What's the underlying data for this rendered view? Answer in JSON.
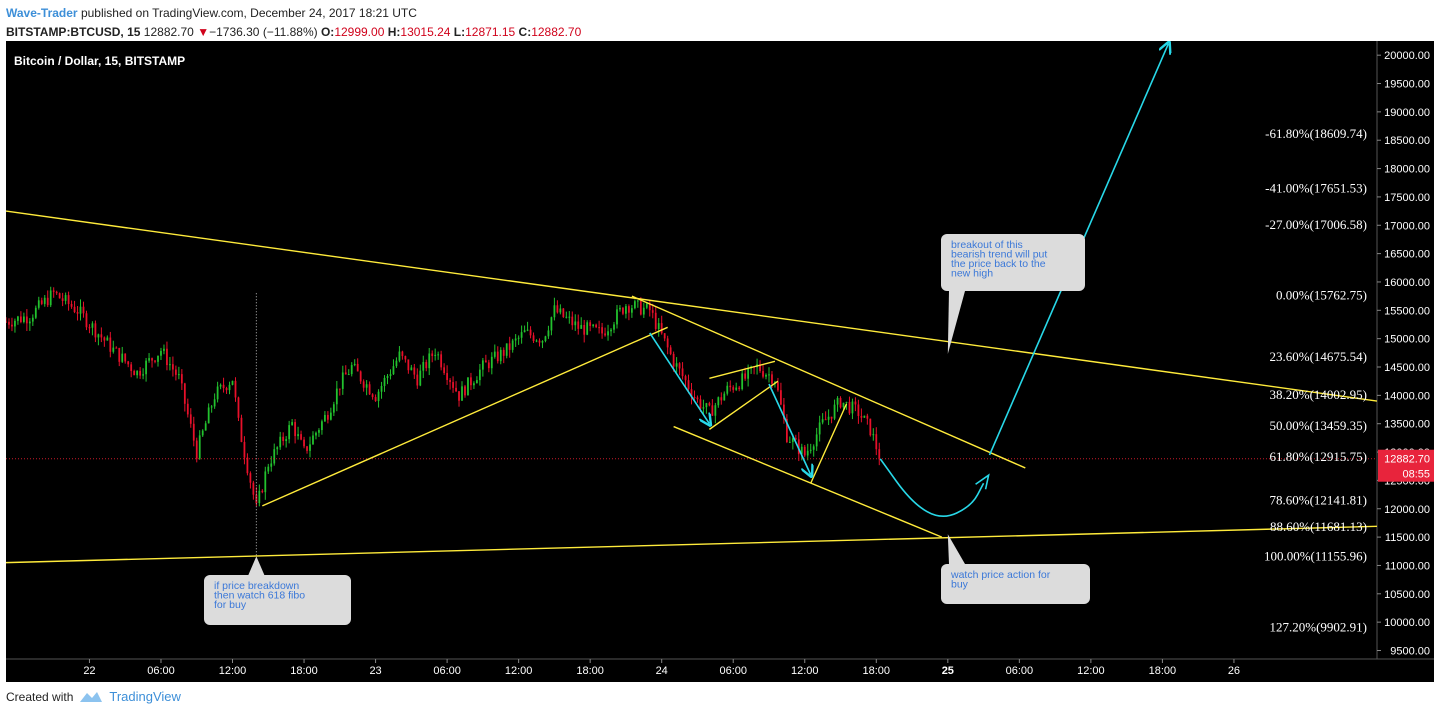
{
  "header": {
    "author": "Wave-Trader",
    "published": "published on TradingView.com, December 24, 2017 18:21 UTC",
    "symbol": "BITSTAMP:BTCUSD, 15",
    "last": "12882.70",
    "change": "−1736.30 (−11.88%)",
    "open_label": "O:",
    "open": "12999.00",
    "high_label": "H:",
    "high": "13015.24",
    "low_label": "L:",
    "low": "12871.15",
    "close_label": "C:",
    "close": "12882.70"
  },
  "footer": {
    "created_with": "Created with",
    "brand": "TradingView"
  },
  "chart_data": {
    "type": "candlestick",
    "title": "Bitcoin / Dollar, 15, BITSTAMP",
    "ylim": [
      9350,
      20250
    ],
    "y_ticks": [
      9500,
      10000,
      10500,
      11000,
      11500,
      12000,
      12500,
      13000,
      13500,
      14000,
      14500,
      15000,
      15500,
      16000,
      16500,
      17000,
      17500,
      18000,
      18500,
      19000,
      19500,
      20000
    ],
    "y_tick_labels": [
      "9500.00",
      "10000.00",
      "10500.00",
      "11000.00",
      "11500.00",
      "12000.00",
      "12500.00",
      "13000.00",
      "13500.00",
      "14000.00",
      "14500.00",
      "15000.00",
      "15500.00",
      "16000.00",
      "16500.00",
      "17000.00",
      "17500.00",
      "18000.00",
      "18500.00",
      "19000.00",
      "19500.00",
      "20000.00"
    ],
    "x_start": "2017-12-21T17:00",
    "x_end": "2017-12-26T12:00",
    "x_ticks": [
      {
        "t": "2017-12-22T00:00",
        "label": "22",
        "bold": false
      },
      {
        "t": "2017-12-22T06:00",
        "label": "06:00",
        "bold": false
      },
      {
        "t": "2017-12-22T12:00",
        "label": "12:00",
        "bold": false
      },
      {
        "t": "2017-12-22T18:00",
        "label": "18:00",
        "bold": false
      },
      {
        "t": "2017-12-23T00:00",
        "label": "23",
        "bold": false
      },
      {
        "t": "2017-12-23T06:00",
        "label": "06:00",
        "bold": false
      },
      {
        "t": "2017-12-23T12:00",
        "label": "12:00",
        "bold": false
      },
      {
        "t": "2017-12-23T18:00",
        "label": "18:00",
        "bold": false
      },
      {
        "t": "2017-12-24T00:00",
        "label": "24",
        "bold": false
      },
      {
        "t": "2017-12-24T06:00",
        "label": "06:00",
        "bold": false
      },
      {
        "t": "2017-12-24T12:00",
        "label": "12:00",
        "bold": false
      },
      {
        "t": "2017-12-24T18:00",
        "label": "18:00",
        "bold": false
      },
      {
        "t": "2017-12-25T00:00",
        "label": "25",
        "bold": true
      },
      {
        "t": "2017-12-25T06:00",
        "label": "06:00",
        "bold": false
      },
      {
        "t": "2017-12-25T12:00",
        "label": "12:00",
        "bold": false
      },
      {
        "t": "2017-12-25T18:00",
        "label": "18:00",
        "bold": false
      },
      {
        "t": "2017-12-26T00:00",
        "label": "26",
        "bold": false
      }
    ],
    "price_path": [
      [
        "2017-12-21T17:00",
        15300
      ],
      [
        "2017-12-21T19:00",
        15400
      ],
      [
        "2017-12-21T21:00",
        15800
      ],
      [
        "2017-12-21T23:00",
        15500
      ],
      [
        "2017-12-22T02:00",
        14800
      ],
      [
        "2017-12-22T04:00",
        14400
      ],
      [
        "2017-12-22T06:00",
        14800
      ],
      [
        "2017-12-22T07:30",
        14300
      ],
      [
        "2017-12-22T09:00",
        13000
      ],
      [
        "2017-12-22T10:30",
        14000
      ],
      [
        "2017-12-22T12:00",
        14300
      ],
      [
        "2017-12-22T12:30",
        13500
      ],
      [
        "2017-12-22T14:00",
        12000
      ],
      [
        "2017-12-22T15:00",
        12800
      ],
      [
        "2017-12-22T17:00",
        13500
      ],
      [
        "2017-12-22T18:00",
        13000
      ],
      [
        "2017-12-22T20:00",
        13700
      ],
      [
        "2017-12-22T21:00",
        14200
      ],
      [
        "2017-12-22T22:00",
        14500
      ],
      [
        "2017-12-23T00:00",
        14000
      ],
      [
        "2017-12-23T02:00",
        14700
      ],
      [
        "2017-12-23T03:30",
        14300
      ],
      [
        "2017-12-23T05:00",
        14800
      ],
      [
        "2017-12-23T07:00",
        14000
      ],
      [
        "2017-12-23T09:00",
        14500
      ],
      [
        "2017-12-23T11:00",
        14800
      ],
      [
        "2017-12-23T12:30",
        15100
      ],
      [
        "2017-12-23T14:00",
        15000
      ],
      [
        "2017-12-23T15:00",
        15500
      ],
      [
        "2017-12-23T17:00",
        15200
      ],
      [
        "2017-12-23T19:00",
        15100
      ],
      [
        "2017-12-23T21:00",
        15600
      ],
      [
        "2017-12-23T23:00",
        15500
      ],
      [
        "2017-12-24T01:00",
        14600
      ],
      [
        "2017-12-24T03:00",
        13900
      ],
      [
        "2017-12-24T04:00",
        13700
      ],
      [
        "2017-12-24T05:30",
        14100
      ],
      [
        "2017-12-24T07:00",
        14300
      ],
      [
        "2017-12-24T08:00",
        14500
      ],
      [
        "2017-12-24T09:30",
        14300
      ],
      [
        "2017-12-24T10:30",
        13300
      ],
      [
        "2017-12-24T12:00",
        12950
      ],
      [
        "2017-12-24T13:30",
        13500
      ],
      [
        "2017-12-24T15:00",
        13900
      ],
      [
        "2017-12-24T16:30",
        13700
      ],
      [
        "2017-12-24T17:30",
        13400
      ],
      [
        "2017-12-24T18:20",
        12883
      ]
    ],
    "spike": {
      "t": "2017-12-22T14:00",
      "low": 11160,
      "high": 15800
    },
    "trendlines": [
      {
        "name": "upper-trendline",
        "from": [
          "2017-12-21T17:00",
          17250
        ],
        "to": [
          "2017-12-26T12:00",
          13900
        ],
        "color": "#ffeb3b"
      },
      {
        "name": "lower-trendline",
        "from": [
          "2017-12-21T17:00",
          11050
        ],
        "to": [
          "2017-12-26T12:00",
          11690
        ],
        "color": "#ffeb3b"
      },
      {
        "name": "rising-channel-line",
        "from": [
          "2017-12-22T14:30",
          12050
        ],
        "to": [
          "2017-12-24T00:30",
          15200
        ],
        "color": "#ffeb3b"
      },
      {
        "name": "descending-channel-top",
        "from": [
          "2017-12-23T21:30",
          15750
        ],
        "to": [
          "2017-12-25T06:30",
          12720
        ],
        "color": "#ffeb3b"
      },
      {
        "name": "descending-channel-bottom",
        "from": [
          "2017-12-24T01:00",
          13450
        ],
        "to": [
          "2017-12-24T23:30",
          11500
        ],
        "color": "#ffeb3b"
      },
      {
        "name": "flag-1-top",
        "from": [
          "2017-12-24T04:00",
          14300
        ],
        "to": [
          "2017-12-24T09:30",
          14600
        ],
        "color": "#ffeb3b"
      },
      {
        "name": "flag-1-bottom",
        "from": [
          "2017-12-24T04:00",
          13400
        ],
        "to": [
          "2017-12-24T09:45",
          14250
        ],
        "color": "#ffeb3b"
      },
      {
        "name": "flag-2-line",
        "from": [
          "2017-12-24T12:30",
          12450
        ],
        "to": [
          "2017-12-24T15:30",
          13850
        ],
        "color": "#ffeb3b"
      }
    ],
    "arrows": [
      {
        "name": "down-arrow-1",
        "from": [
          "2017-12-23T23:00",
          15100
        ],
        "to": [
          "2017-12-24T04:00",
          13500
        ]
      },
      {
        "name": "down-arrow-2",
        "from": [
          "2017-12-24T09:00",
          14200
        ],
        "to": [
          "2017-12-24T12:30",
          12600
        ]
      },
      {
        "name": "projected-upswing",
        "from": [
          "2017-12-25T03:30",
          12950
        ],
        "to": [
          "2017-12-25T18:30",
          20200
        ]
      }
    ],
    "projection_curve": [
      [
        "2017-12-24T18:20",
        12880
      ],
      [
        "2017-12-24T21:00",
        12100
      ],
      [
        "2017-12-24T23:30",
        11800
      ],
      [
        "2017-12-25T02:00",
        12050
      ],
      [
        "2017-12-25T03:00",
        12450
      ]
    ],
    "current_price_line": 12882.7,
    "fib_levels": [
      {
        "label": "-61.80%(18609.74)",
        "value": 18609.74
      },
      {
        "label": "-41.00%(17651.53)",
        "value": 17651.53
      },
      {
        "label": "-27.00%(17006.58)",
        "value": 17006.58
      },
      {
        "label": "0.00%(15762.75)",
        "value": 15762.75
      },
      {
        "label": "23.60%(14675.54)",
        "value": 14675.54
      },
      {
        "label": "38.20%(14002.95)",
        "value": 14002.95
      },
      {
        "label": "50.00%(13459.35)",
        "value": 13459.35
      },
      {
        "label": "61.80%(12915.75)",
        "value": 12915.75
      },
      {
        "label": "78.60%(12141.81)",
        "value": 12141.81
      },
      {
        "label": "88.60%(11681.13)",
        "value": 11681.13
      },
      {
        "label": "100.00%(11155.96)",
        "value": 11155.96
      },
      {
        "label": "127.20%(9902.91)",
        "value": 9902.91
      }
    ],
    "price_tag": {
      "price": "12882.70",
      "countdown": "08:55",
      "color": "#e8243c"
    },
    "annotations": [
      {
        "name": "callout-breakdown",
        "text": [
          "if price breakdown",
          "then watch 618 fibo",
          "for buy"
        ],
        "anchor": [
          "2017-12-22T14:00",
          11160
        ]
      },
      {
        "name": "callout-breakout",
        "text": [
          "breakout of this",
          "bearish trend will put",
          "the price back to the",
          "new high"
        ],
        "anchor": [
          "2017-12-25T00:00",
          14730
        ]
      },
      {
        "name": "callout-watch",
        "text": [
          "watch price action for",
          "buy"
        ],
        "anchor": [
          "2017-12-25T00:00",
          11550
        ]
      }
    ],
    "colors": {
      "up": "#22c22e",
      "down": "#e8102a",
      "trend": "#ffeb3b",
      "arrow": "#28d8e8",
      "fib_text": "#ffffff",
      "bg": "#000000"
    }
  }
}
